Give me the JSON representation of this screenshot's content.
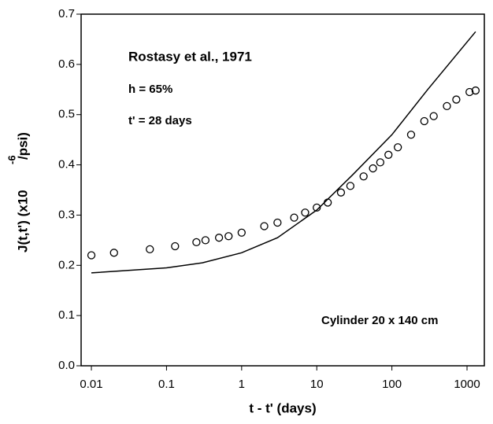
{
  "chart_data": {
    "type": "line",
    "log_x": true,
    "color": "#000000",
    "xlabel": "t - t' (days)",
    "ylabel": [
      "J(t,t') (x10",
      "-6",
      "/psi)"
    ],
    "annotations": [
      "Rostasy et al., 1971",
      "h = 65%",
      "t' = 28 days",
      "Cylinder 20 x 140 cm"
    ],
    "xlim": [
      0.0073,
      1700
    ],
    "xticks": [
      0.01,
      0.1,
      1,
      10,
      100,
      1000
    ],
    "ylim": [
      0,
      0.7
    ],
    "yticks": [
      {
        "value": 0,
        "label": "0.0"
      },
      0.1,
      0.2,
      0.3,
      0.4,
      0.5,
      0.6,
      0.7
    ],
    "series": [
      {
        "marker": "circle",
        "x": [
          0.01,
          0.02,
          0.06,
          0.13,
          0.25,
          0.33,
          0.5,
          0.67,
          1,
          2,
          3,
          5,
          7,
          10,
          14,
          21,
          28,
          42,
          56,
          70,
          90,
          120,
          180,
          270,
          360,
          540,
          720,
          1080,
          1300
        ],
        "values": [
          0.22,
          0.225,
          0.232,
          0.238,
          0.246,
          0.25,
          0.255,
          0.258,
          0.265,
          0.278,
          0.285,
          0.295,
          0.305,
          0.315,
          0.325,
          0.345,
          0.358,
          0.377,
          0.393,
          0.405,
          0.42,
          0.435,
          0.46,
          0.487,
          0.497,
          0.517,
          0.53,
          0.545,
          0.548
        ]
      },
      {
        "marker": "none",
        "x": [
          0.01,
          0.1,
          0.3,
          1,
          3,
          10,
          30,
          100,
          300,
          1300
        ],
        "values": [
          0.185,
          0.195,
          0.205,
          0.225,
          0.255,
          0.31,
          0.38,
          0.46,
          0.55,
          0.665
        ]
      }
    ]
  }
}
